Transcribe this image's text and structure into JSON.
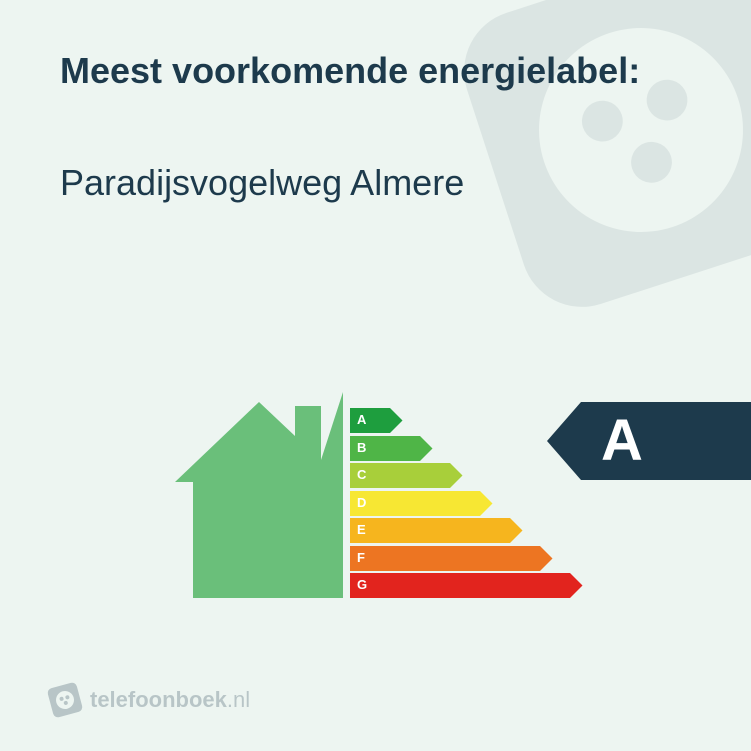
{
  "background_color": "#edf5f1",
  "text_color": "#1d3a4c",
  "title": "Meest voorkomende energielabel:",
  "title_fontsize": 36,
  "title_fontweight": 800,
  "subtitle": "Paradijsvogelweg Almere",
  "subtitle_fontsize": 36,
  "subtitle_fontweight": 400,
  "house_color": "#6abf7a",
  "energy_bars": {
    "base_width": 40,
    "step_width": 30,
    "height": 25,
    "gap": 2.5,
    "labels": [
      "A",
      "B",
      "C",
      "D",
      "E",
      "F",
      "G"
    ],
    "colors": [
      "#1e9e3e",
      "#4fb547",
      "#a8cf3a",
      "#f7e733",
      "#f6b51e",
      "#ed7522",
      "#e2241e"
    ],
    "letter_color": "#ffffff"
  },
  "result": {
    "letter": "A",
    "badge_color": "#1d3a4c",
    "text_color": "#ffffff",
    "body_width": 170
  },
  "footer": {
    "logo_bg": "#1d3a4c",
    "brand_bold": "telefoonboek",
    "brand_light": ".nl"
  },
  "deco_color": "#1d3a4c"
}
